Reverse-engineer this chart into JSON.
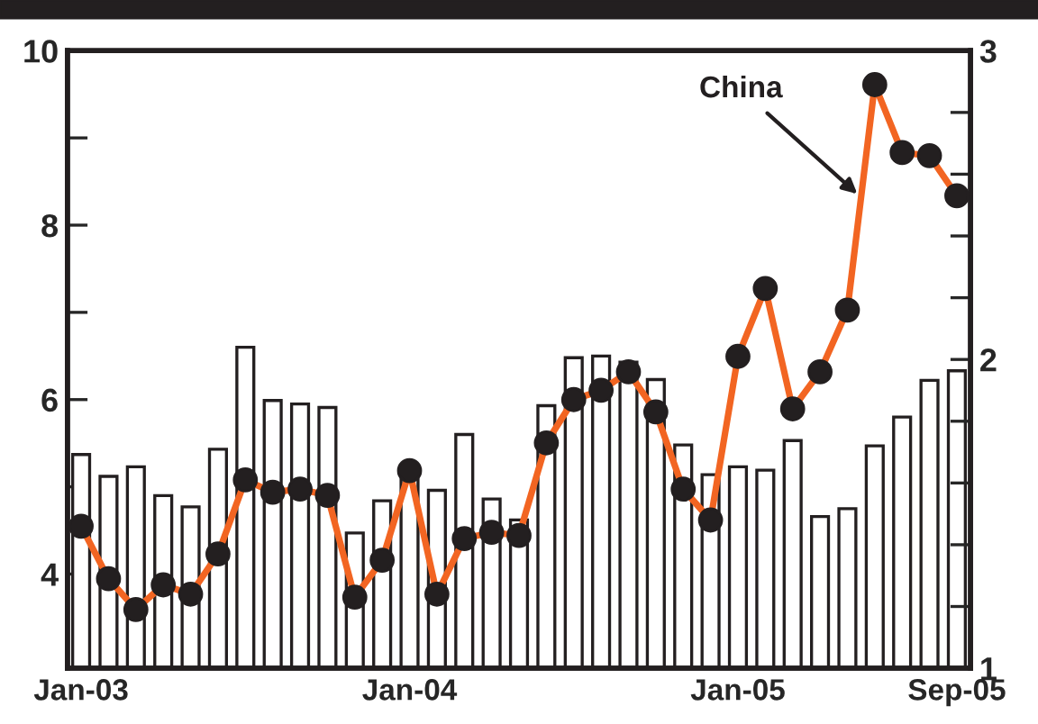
{
  "chart_data": {
    "type": "bar",
    "categories": [
      "Jan-03",
      null,
      null,
      null,
      null,
      null,
      null,
      null,
      null,
      null,
      null,
      null,
      "Jan-04",
      null,
      null,
      null,
      null,
      null,
      null,
      null,
      null,
      null,
      null,
      null,
      "Jan-05",
      null,
      null,
      null,
      null,
      null,
      null,
      null,
      "Sep-05"
    ],
    "series": [
      {
        "color": "#ffffff",
        "values": [
          5.37,
          5.12,
          5.23,
          4.9,
          4.77,
          5.43,
          6.6,
          5.99,
          5.95,
          5.91,
          4.47,
          4.84,
          5.15,
          4.96,
          5.6,
          4.86,
          4.62,
          5.93,
          6.48,
          6.5,
          6.43,
          6.23,
          5.48,
          5.14,
          5.23,
          5.19,
          5.53,
          4.66,
          4.75,
          5.47,
          5.8,
          6.22,
          6.33
        ]
      },
      {
        "type": "line",
        "axis": "y2",
        "name": "China",
        "color": "#f26522",
        "marker": "circle",
        "line_style": "solid",
        "values": [
          1.46,
          1.29,
          1.19,
          1.27,
          1.24,
          1.37,
          1.61,
          1.57,
          1.58,
          1.56,
          1.23,
          1.35,
          1.64,
          1.24,
          1.42,
          1.44,
          1.43,
          1.73,
          1.87,
          1.9,
          1.96,
          1.83,
          1.58,
          1.48,
          2.01,
          2.23,
          1.84,
          1.96,
          2.16,
          2.89,
          2.67,
          2.66,
          2.53
        ]
      }
    ],
    "ylim": [
      2.92,
      10
    ],
    "yticks": [
      4,
      {
        "value": 5,
        "label": null
      },
      6,
      {
        "value": 7,
        "label": null
      },
      8,
      {
        "value": 9,
        "label": null
      },
      10
    ],
    "y2lim": [
      1,
      3
    ],
    "y2ticks": [
      1,
      {
        "value": 1.2,
        "label": null
      },
      {
        "value": 1.4,
        "label": null
      },
      {
        "value": 1.6,
        "label": null
      },
      {
        "value": 1.8,
        "label": null
      },
      2,
      {
        "value": 2.2,
        "label": null
      },
      {
        "value": 2.4,
        "label": null
      },
      {
        "value": 2.6,
        "label": null
      },
      {
        "value": 2.8,
        "label": null
      },
      3
    ],
    "grid": false,
    "legend": false
  }
}
